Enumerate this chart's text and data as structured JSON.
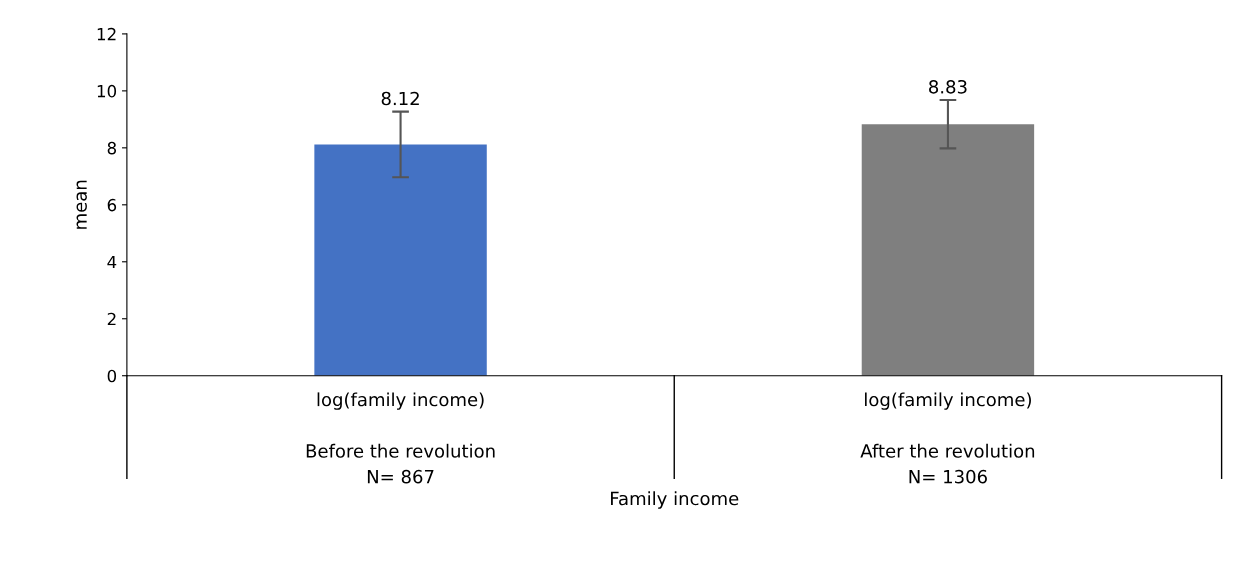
{
  "chart_data": {
    "type": "bar",
    "annotations": [
      "Family income"
    ],
    "ylabel": "mean",
    "categories": [
      "log(family income)\n\nBefore the revolution\nN= 867",
      "log(family income)\n\nAfter the revolution\nN= 1306"
    ],
    "values": [
      8.12,
      8.83
    ],
    "colors": [
      "#4472c4",
      "#7f7f7f"
    ],
    "errors": [
      1.15,
      0.85
    ],
    "data_labels": true,
    "ylim": [
      0,
      12
    ],
    "yticks": [
      0,
      2,
      4,
      6,
      8,
      10,
      12
    ],
    "grid": false,
    "legend": false
  }
}
